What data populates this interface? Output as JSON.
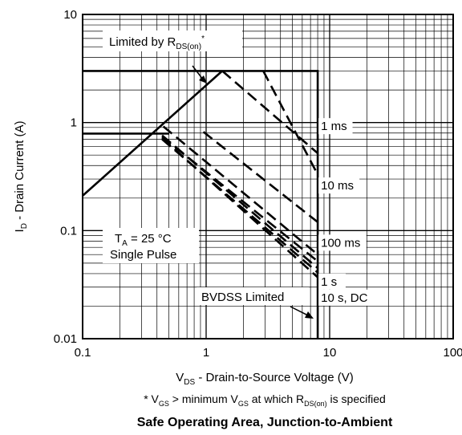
{
  "chart_data": {
    "type": "line",
    "x_scale": "log",
    "y_scale": "log",
    "xlim": [
      0.1,
      100
    ],
    "ylim": [
      0.01,
      10
    ],
    "grid": true,
    "x_ticks": [
      "0.1",
      "1",
      "10",
      "100"
    ],
    "y_ticks": [
      "0.01",
      "0.1",
      "1",
      "10"
    ],
    "xlabel": {
      "main": "V",
      "sub": "DS",
      "rest": " - Drain-to-Source Voltage (V)"
    },
    "ylabel": {
      "main": "I",
      "sub": "D",
      "rest": " - Drain Current (A)"
    },
    "title": "Safe Operating Area, Junction-to-Ambient",
    "footnote": {
      "star": "* ",
      "v1": "V",
      "s1": "GS",
      "mid": " > minimum V",
      "s2": "GS",
      "mid2": " at which R",
      "s3": "DS(on)",
      "end": " is specified"
    },
    "annotations": {
      "rds": {
        "pre": "Limited by R",
        "sub": "DS(on)",
        "sup": "*"
      },
      "ta": {
        "pre": "T",
        "sub": "A",
        "post": " = 25 °C"
      },
      "pulse": "Single Pulse",
      "bvdss": "BVDSS Limited"
    },
    "series": [
      {
        "name": "1 ms",
        "style": "dashed",
        "points": [
          [
            1.35,
            3.0
          ],
          [
            8.0,
            0.52
          ]
        ]
      },
      {
        "name": "10 ms",
        "style": "dashed",
        "points": [
          [
            2.9,
            3.0
          ],
          [
            8.0,
            0.33
          ]
        ]
      },
      {
        "name": "100 ms",
        "style": "dashed",
        "points": [
          [
            0.95,
            0.82
          ],
          [
            8.0,
            0.12
          ]
        ]
      },
      {
        "name": "1 s",
        "style": "dashed",
        "points": [
          [
            0.45,
            0.92
          ],
          [
            8.0,
            0.06
          ]
        ]
      },
      {
        "name": "10 s, DC",
        "style": "dashed",
        "points": [
          [
            0.44,
            0.76
          ],
          [
            8.0,
            0.045
          ]
        ]
      },
      {
        "name": "",
        "style": "dashed",
        "points": [
          [
            0.44,
            0.74
          ],
          [
            8.0,
            0.052
          ]
        ]
      },
      {
        "name": "",
        "style": "dashed",
        "points": [
          [
            0.44,
            0.72
          ],
          [
            8.0,
            0.037
          ]
        ]
      },
      {
        "name": "",
        "style": "dashed",
        "points": [
          [
            0.44,
            0.7
          ],
          [
            8.0,
            0.041
          ]
        ]
      },
      {
        "name": "",
        "style": "solid",
        "points": [
          [
            0.1,
            0.21
          ],
          [
            1.35,
            3.0
          ]
        ]
      },
      {
        "name": "",
        "style": "solid",
        "points": [
          [
            0.1,
            3.0
          ],
          [
            8.0,
            3.0
          ],
          [
            8.0,
            0.01
          ]
        ]
      },
      {
        "name": "",
        "style": "solid",
        "points": [
          [
            0.1,
            0.79
          ],
          [
            0.5,
            0.79
          ]
        ]
      }
    ],
    "series_labels": [
      {
        "text": "1 ms",
        "x": 8.5,
        "y": 0.85
      },
      {
        "text": "10 ms",
        "x": 8.5,
        "y": 0.24
      },
      {
        "text": "100 ms",
        "x": 8.5,
        "y": 0.071
      },
      {
        "text": "1 s",
        "x": 8.5,
        "y": 0.031
      },
      {
        "text": "10 s, DC",
        "x": 8.5,
        "y": 0.022
      }
    ]
  }
}
